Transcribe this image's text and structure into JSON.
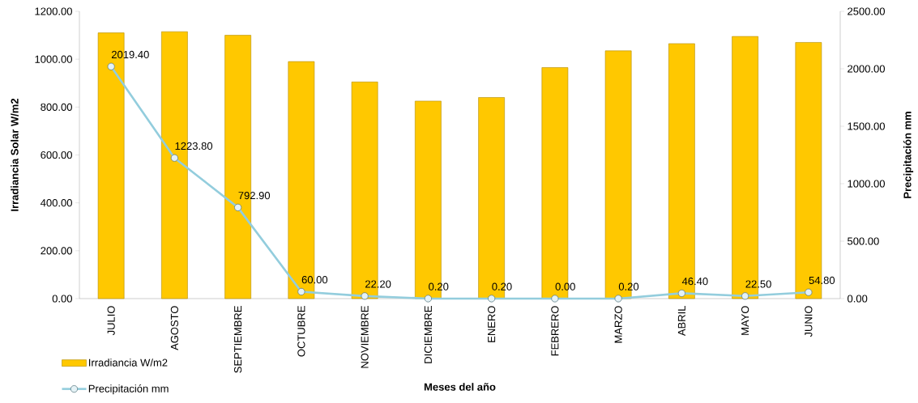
{
  "chart_data": {
    "type": "bar",
    "xlabel": "Meses del año",
    "ylabel": "Irradiancia Solar W/m2",
    "y2label": "Precipitación mm",
    "categories": [
      "JULIO",
      "AGOSTO",
      "SEPTIEMBRE",
      "OCTUBRE",
      "NOVIEMBRE",
      "DICIEMBRE",
      "ENERO",
      "FEBRERO",
      "MARZO",
      "ABRIL",
      "MAYO",
      "JUNIO"
    ],
    "series": [
      {
        "name": "Irradiancia W/m2",
        "color": "#ffc800",
        "values": [
          1110,
          1115,
          1100,
          990,
          905,
          825,
          840,
          965,
          1035,
          1065,
          1095,
          1070
        ]
      },
      {
        "name": "Precipitación mm",
        "type": "line",
        "axis": "y2",
        "color": "#93cddd",
        "values": [
          2019.4,
          1223.8,
          792.9,
          60,
          22.2,
          0.2,
          0.2,
          0,
          0.2,
          46.4,
          22.5,
          54.8
        ],
        "value_labels": [
          "2019.40",
          "1223.80",
          "792.90",
          "60.00",
          "22.20",
          "0.20",
          "0.20",
          "0.00",
          "0.20",
          "46.40",
          "22.50",
          "54.80"
        ]
      }
    ],
    "ylim": [
      0,
      1200
    ],
    "yticks": [
      {
        "value": 0,
        "label": "0.00"
      },
      {
        "value": 200,
        "label": "200.00"
      },
      {
        "value": 400,
        "label": "400.00"
      },
      {
        "value": 600,
        "label": "600.00"
      },
      {
        "value": 800,
        "label": "800.00"
      },
      {
        "value": 1000,
        "label": "1000.00"
      },
      {
        "value": 1200,
        "label": "1200.00"
      }
    ],
    "y2lim": [
      0,
      2500
    ],
    "y2ticks": [
      {
        "value": 0,
        "label": "0.00"
      },
      {
        "value": 500,
        "label": "500.00"
      },
      {
        "value": 1000,
        "label": "1000.00"
      },
      {
        "value": 1500,
        "label": "1500.00"
      },
      {
        "value": 2000,
        "label": "2000.00"
      },
      {
        "value": 2500,
        "label": "2500.00"
      }
    ],
    "marker": "circle",
    "line_style": "solid",
    "legend": "bottom left"
  }
}
